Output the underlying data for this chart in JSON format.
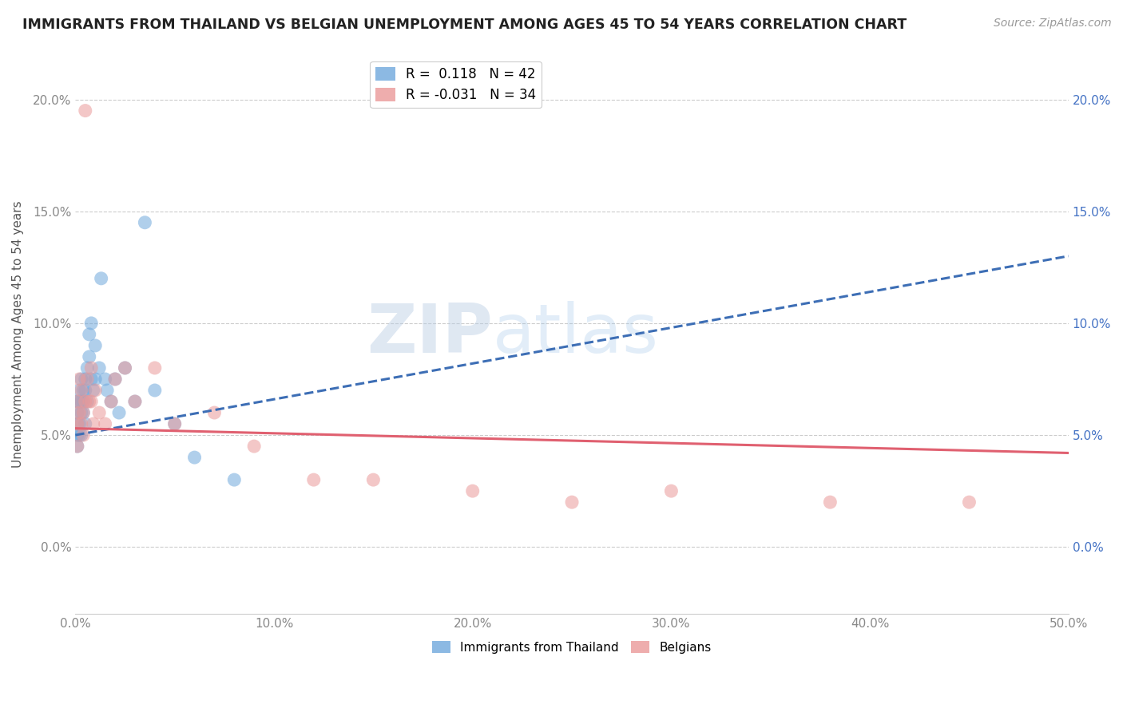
{
  "title": "IMMIGRANTS FROM THAILAND VS BELGIAN UNEMPLOYMENT AMONG AGES 45 TO 54 YEARS CORRELATION CHART",
  "source": "Source: ZipAtlas.com",
  "ylabel": "Unemployment Among Ages 45 to 54 years",
  "xlim": [
    0.0,
    0.5
  ],
  "ylim": [
    -0.03,
    0.22
  ],
  "yticks": [
    0.0,
    0.05,
    0.1,
    0.15,
    0.2
  ],
  "ytick_labels": [
    "0.0%",
    "5.0%",
    "10.0%",
    "15.0%",
    "20.0%"
  ],
  "xticks": [
    0.0,
    0.1,
    0.2,
    0.3,
    0.4,
    0.5
  ],
  "xtick_labels": [
    "0.0%",
    "10.0%",
    "20.0%",
    "30.0%",
    "40.0%",
    "50.0%"
  ],
  "blue_color": "#6fa8dc",
  "pink_color": "#ea9999",
  "blue_R": 0.118,
  "blue_N": 42,
  "pink_R": -0.031,
  "pink_N": 34,
  "watermark_zip": "ZIP",
  "watermark_atlas": "atlas",
  "background_color": "#ffffff",
  "grid_color": "#cccccc",
  "blue_scatter_x": [
    0.001,
    0.001,
    0.001,
    0.001,
    0.001,
    0.002,
    0.002,
    0.002,
    0.002,
    0.003,
    0.003,
    0.003,
    0.003,
    0.004,
    0.004,
    0.004,
    0.005,
    0.005,
    0.005,
    0.006,
    0.006,
    0.007,
    0.007,
    0.008,
    0.008,
    0.009,
    0.01,
    0.01,
    0.012,
    0.013,
    0.015,
    0.016,
    0.018,
    0.02,
    0.022,
    0.025,
    0.03,
    0.035,
    0.04,
    0.05,
    0.06,
    0.08
  ],
  "blue_scatter_y": [
    0.065,
    0.06,
    0.055,
    0.05,
    0.045,
    0.07,
    0.065,
    0.055,
    0.05,
    0.075,
    0.065,
    0.06,
    0.05,
    0.07,
    0.065,
    0.06,
    0.075,
    0.07,
    0.055,
    0.08,
    0.065,
    0.095,
    0.085,
    0.1,
    0.075,
    0.07,
    0.09,
    0.075,
    0.08,
    0.12,
    0.075,
    0.07,
    0.065,
    0.075,
    0.06,
    0.08,
    0.065,
    0.145,
    0.07,
    0.055,
    0.04,
    0.03
  ],
  "pink_scatter_x": [
    0.001,
    0.001,
    0.001,
    0.002,
    0.002,
    0.003,
    0.003,
    0.004,
    0.004,
    0.005,
    0.005,
    0.006,
    0.007,
    0.008,
    0.008,
    0.009,
    0.01,
    0.012,
    0.015,
    0.018,
    0.02,
    0.025,
    0.03,
    0.04,
    0.05,
    0.07,
    0.09,
    0.12,
    0.15,
    0.2,
    0.25,
    0.3,
    0.38,
    0.45
  ],
  "pink_scatter_y": [
    0.065,
    0.055,
    0.045,
    0.075,
    0.06,
    0.07,
    0.055,
    0.06,
    0.05,
    0.195,
    0.065,
    0.075,
    0.065,
    0.08,
    0.065,
    0.055,
    0.07,
    0.06,
    0.055,
    0.065,
    0.075,
    0.08,
    0.065,
    0.08,
    0.055,
    0.06,
    0.045,
    0.03,
    0.03,
    0.025,
    0.02,
    0.025,
    0.02,
    0.02
  ],
  "blue_trend_x0": 0.0,
  "blue_trend_x1": 0.5,
  "blue_trend_y0": 0.05,
  "blue_trend_y1": 0.13,
  "pink_trend_x0": 0.0,
  "pink_trend_x1": 0.5,
  "pink_trend_y0": 0.053,
  "pink_trend_y1": 0.042
}
